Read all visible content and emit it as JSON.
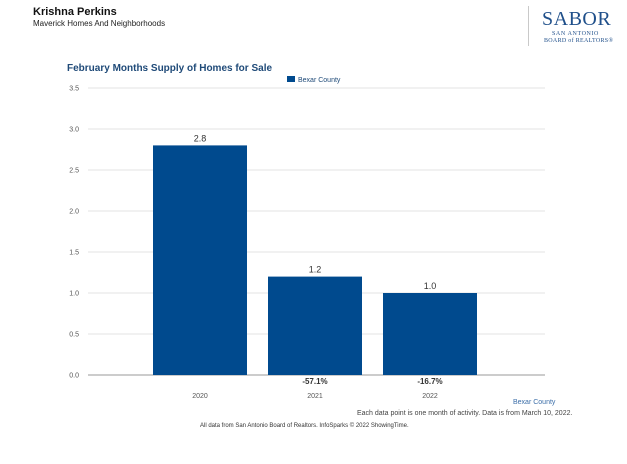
{
  "header": {
    "agent_name": "Krishna Perkins",
    "subtitle": "Maverick Homes And Neighborhoods"
  },
  "logo": {
    "word": "SABOR",
    "line1": "SAN ANTONIO",
    "line2": "BOARD of REALTORS®"
  },
  "colors": {
    "bar": "#004a8e",
    "title": "#1f4a78",
    "grid": "#e3e3e3",
    "axis": "#999999"
  },
  "chart_data": {
    "type": "bar",
    "title": "February Months Supply of Homes for Sale",
    "categories": [
      "2020",
      "2021",
      "2022"
    ],
    "series": [
      {
        "name": "Bexar County",
        "values": [
          2.8,
          1.2,
          1.0
        ]
      }
    ],
    "data_labels": [
      "2.8",
      "1.2",
      "1.0"
    ],
    "change_labels": [
      "",
      "-57.1%",
      "-16.7%"
    ],
    "y_ticks": [
      "0.0",
      "0.5",
      "1.0",
      "1.5",
      "2.0",
      "2.5",
      "3.0",
      "3.5"
    ],
    "ylim": [
      0,
      3.5
    ],
    "xlabel": "",
    "ylabel": "",
    "grid": true,
    "legend": "top-center"
  },
  "footer": {
    "series_name": "Bexar County",
    "note": "Each data point is one month of activity. Data is from March 10, 2022.",
    "credits": "All data from San Antonio Board of Realtors. InfoSparks © 2022 ShowingTime."
  }
}
